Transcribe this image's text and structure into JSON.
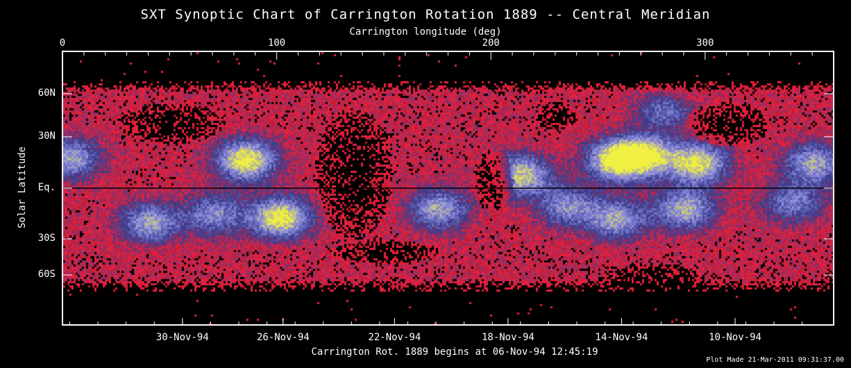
{
  "chart_data": {
    "type": "heatmap",
    "title": "SXT Synoptic Chart of Carrington Rotation 1889 -- Central Meridian",
    "xlabel_top": "Carrington longitude (deg)",
    "xlabel_bottom": "Carrington Rot. 1889 begins at 06-Nov-94 12:45:19",
    "ylabel": "Solar Latitude",
    "xlim": [
      0,
      360
    ],
    "ylim": [
      -90,
      90
    ],
    "x_ticks_top": [
      {
        "value": 0,
        "label": "0"
      },
      {
        "value": 100,
        "label": "100"
      },
      {
        "value": 200,
        "label": "200"
      },
      {
        "value": 300,
        "label": "300"
      }
    ],
    "y_ticks": [
      {
        "value": 60,
        "label": "60N"
      },
      {
        "value": 30,
        "label": "30N"
      },
      {
        "value": 0,
        "label": "Eq."
      },
      {
        "value": -30,
        "label": "30S"
      },
      {
        "value": -60,
        "label": "60S"
      }
    ],
    "x_ticks_bottom": [
      {
        "value": 56,
        "label": "30-Nov-94"
      },
      {
        "value": 103,
        "label": "26-Nov-94"
      },
      {
        "value": 155,
        "label": "22-Nov-94"
      },
      {
        "value": 208,
        "label": "18-Nov-94"
      },
      {
        "value": 261,
        "label": "14-Nov-94"
      },
      {
        "value": 314,
        "label": "10-Nov-94"
      }
    ],
    "equator_line": true,
    "colormap": [
      "#000000",
      "#e8203c",
      "#3a3c8c",
      "#8c8ce0",
      "#f0f040"
    ],
    "bright_regions": [
      {
        "lon": 3,
        "lat": 18,
        "level": 0.7
      },
      {
        "lon": 85,
        "lat": 17,
        "level": 1.0
      },
      {
        "lon": 101,
        "lat": -17,
        "level": 1.0
      },
      {
        "lon": 40,
        "lat": -20,
        "level": 0.7
      },
      {
        "lon": 70,
        "lat": -15,
        "level": 0.6
      },
      {
        "lon": 175,
        "lat": -12,
        "level": 0.7
      },
      {
        "lon": 213,
        "lat": 8,
        "level": 0.85
      },
      {
        "lon": 258,
        "lat": 17,
        "level": 1.0
      },
      {
        "lon": 272,
        "lat": 20,
        "level": 0.8
      },
      {
        "lon": 296,
        "lat": 15,
        "level": 0.9
      },
      {
        "lon": 290,
        "lat": -12,
        "level": 0.75
      },
      {
        "lon": 258,
        "lat": -18,
        "level": 0.7
      },
      {
        "lon": 235,
        "lat": -10,
        "level": 0.6
      },
      {
        "lon": 350,
        "lat": 15,
        "level": 0.7
      },
      {
        "lon": 340,
        "lat": -8,
        "level": 0.55
      },
      {
        "lon": 280,
        "lat": 48,
        "level": 0.5
      }
    ]
  },
  "footer": {
    "plot_made": "Plot Made 21-Mar-2011 09:31:37.00"
  }
}
